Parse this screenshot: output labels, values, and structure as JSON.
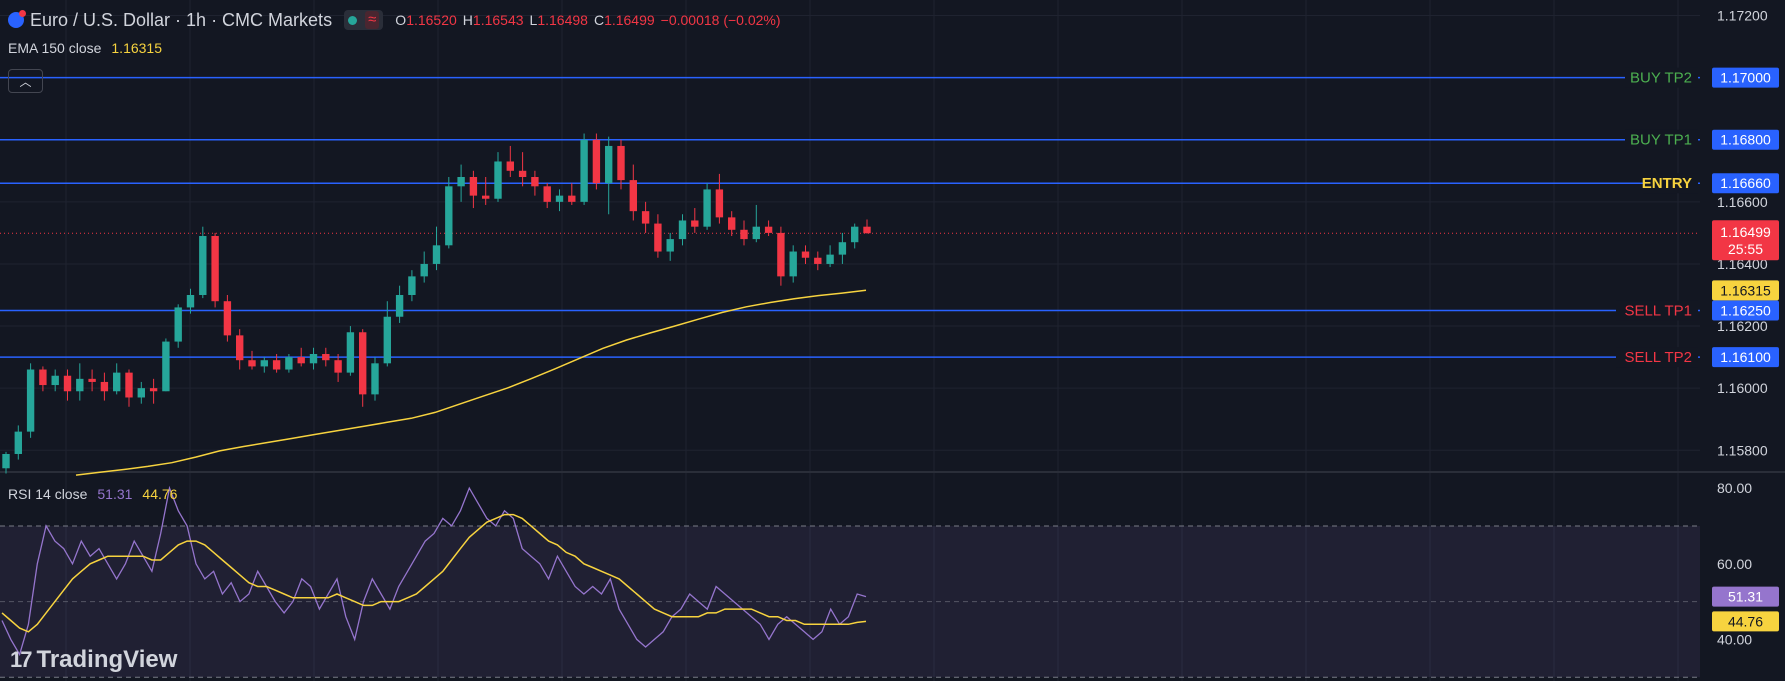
{
  "header": {
    "symbol_title": "Euro / U.S. Dollar · 1h · CMC Markets",
    "ohlc": [
      {
        "key": "O",
        "value": "1.16520"
      },
      {
        "key": "H",
        "value": "1.16543"
      },
      {
        "key": "L",
        "value": "1.16498"
      },
      {
        "key": "C",
        "value": "1.16499"
      }
    ],
    "change": "−0.00018 (−0.02%)"
  },
  "ema_legend": {
    "label": "EMA 150 close",
    "value": "1.16315"
  },
  "rsi_legend": {
    "label": "RSI 14 close",
    "rsi_value": "51.31",
    "ma_value": "44.76"
  },
  "logo": {
    "text": "TradingView"
  },
  "colors": {
    "background": "#131722",
    "up": "#26a69a",
    "down": "#f23645",
    "level_line": "#2962ff",
    "ema": "#f7d33f",
    "rsi": "#9575cd",
    "buy_label": "#4caf50",
    "sell_label": "#f23645",
    "entry_label": "#f7d33f"
  },
  "chart_data": [
    {
      "type": "candlestick",
      "title": "Euro / U.S. Dollar · 1h · CMC Markets",
      "y_axis": {
        "ticks": [
          "1.17200",
          "1.16600",
          "1.16400",
          "1.16200",
          "1.16000",
          "1.15800"
        ],
        "ylim": [
          1.1573,
          1.1725
        ]
      },
      "series": [
        {
          "name": "EMA 150 close",
          "values": [
            1.1572,
            1.15729,
            1.15738,
            1.15748,
            1.1576,
            1.15778,
            1.15798,
            1.15812,
            1.15825,
            1.15838,
            1.15851,
            1.15864,
            1.15877,
            1.1589,
            1.15903,
            1.15922,
            1.15948,
            1.15974,
            1.16,
            1.1603,
            1.16062,
            1.16095,
            1.16128,
            1.16155,
            1.16178,
            1.162,
            1.16222,
            1.16244,
            1.16262,
            1.16276,
            1.16288,
            1.16298,
            1.16306,
            1.16315
          ]
        }
      ],
      "candles": [
        {
          "o": 1.15742,
          "h": 1.15795,
          "l": 1.15725,
          "c": 1.15788
        },
        {
          "o": 1.15788,
          "h": 1.1588,
          "l": 1.1577,
          "c": 1.1586
        },
        {
          "o": 1.1586,
          "h": 1.1608,
          "l": 1.1584,
          "c": 1.1606
        },
        {
          "o": 1.1606,
          "h": 1.1607,
          "l": 1.1599,
          "c": 1.1601
        },
        {
          "o": 1.1601,
          "h": 1.1606,
          "l": 1.1599,
          "c": 1.1604
        },
        {
          "o": 1.1604,
          "h": 1.1606,
          "l": 1.1596,
          "c": 1.1599
        },
        {
          "o": 1.1599,
          "h": 1.1608,
          "l": 1.1596,
          "c": 1.1603
        },
        {
          "o": 1.1603,
          "h": 1.1606,
          "l": 1.1599,
          "c": 1.1602
        },
        {
          "o": 1.1602,
          "h": 1.1605,
          "l": 1.1596,
          "c": 1.1599
        },
        {
          "o": 1.1599,
          "h": 1.1608,
          "l": 1.1598,
          "c": 1.1605
        },
        {
          "o": 1.1605,
          "h": 1.1606,
          "l": 1.1594,
          "c": 1.1597
        },
        {
          "o": 1.1597,
          "h": 1.1602,
          "l": 1.1595,
          "c": 1.16
        },
        {
          "o": 1.16,
          "h": 1.1603,
          "l": 1.1595,
          "c": 1.1599
        },
        {
          "o": 1.1599,
          "h": 1.1616,
          "l": 1.1599,
          "c": 1.1615
        },
        {
          "o": 1.1615,
          "h": 1.1627,
          "l": 1.1613,
          "c": 1.1626
        },
        {
          "o": 1.1626,
          "h": 1.1632,
          "l": 1.1624,
          "c": 1.163
        },
        {
          "o": 1.163,
          "h": 1.1652,
          "l": 1.1629,
          "c": 1.1649
        },
        {
          "o": 1.1649,
          "h": 1.165,
          "l": 1.1626,
          "c": 1.1628
        },
        {
          "o": 1.1628,
          "h": 1.163,
          "l": 1.1615,
          "c": 1.1617
        },
        {
          "o": 1.1617,
          "h": 1.1619,
          "l": 1.1606,
          "c": 1.1609
        },
        {
          "o": 1.1609,
          "h": 1.1612,
          "l": 1.1606,
          "c": 1.1607
        },
        {
          "o": 1.1607,
          "h": 1.161,
          "l": 1.1605,
          "c": 1.1609
        },
        {
          "o": 1.1609,
          "h": 1.1611,
          "l": 1.1605,
          "c": 1.1606
        },
        {
          "o": 1.1606,
          "h": 1.1611,
          "l": 1.1605,
          "c": 1.161
        },
        {
          "o": 1.161,
          "h": 1.1613,
          "l": 1.1607,
          "c": 1.1608
        },
        {
          "o": 1.1608,
          "h": 1.1613,
          "l": 1.1606,
          "c": 1.1611
        },
        {
          "o": 1.1611,
          "h": 1.1613,
          "l": 1.1607,
          "c": 1.1609
        },
        {
          "o": 1.1609,
          "h": 1.1611,
          "l": 1.1602,
          "c": 1.1605
        },
        {
          "o": 1.1605,
          "h": 1.162,
          "l": 1.1604,
          "c": 1.1618
        },
        {
          "o": 1.1618,
          "h": 1.1619,
          "l": 1.1594,
          "c": 1.1598
        },
        {
          "o": 1.1598,
          "h": 1.161,
          "l": 1.1596,
          "c": 1.1608
        },
        {
          "o": 1.1608,
          "h": 1.1628,
          "l": 1.1607,
          "c": 1.1623
        },
        {
          "o": 1.1623,
          "h": 1.1633,
          "l": 1.1621,
          "c": 1.163
        },
        {
          "o": 1.163,
          "h": 1.1638,
          "l": 1.1628,
          "c": 1.1636
        },
        {
          "o": 1.1636,
          "h": 1.1644,
          "l": 1.1634,
          "c": 1.164
        },
        {
          "o": 1.164,
          "h": 1.1652,
          "l": 1.1638,
          "c": 1.1646
        },
        {
          "o": 1.1646,
          "h": 1.1668,
          "l": 1.1645,
          "c": 1.1665
        },
        {
          "o": 1.1665,
          "h": 1.1672,
          "l": 1.166,
          "c": 1.1668
        },
        {
          "o": 1.1668,
          "h": 1.167,
          "l": 1.1658,
          "c": 1.1662
        },
        {
          "o": 1.1662,
          "h": 1.1668,
          "l": 1.1659,
          "c": 1.1661
        },
        {
          "o": 1.1661,
          "h": 1.1676,
          "l": 1.166,
          "c": 1.1673
        },
        {
          "o": 1.1673,
          "h": 1.1678,
          "l": 1.1668,
          "c": 1.167
        },
        {
          "o": 1.167,
          "h": 1.1676,
          "l": 1.1665,
          "c": 1.1668
        },
        {
          "o": 1.1668,
          "h": 1.167,
          "l": 1.1662,
          "c": 1.1665
        },
        {
          "o": 1.1665,
          "h": 1.1666,
          "l": 1.1658,
          "c": 1.166
        },
        {
          "o": 1.166,
          "h": 1.1664,
          "l": 1.1657,
          "c": 1.1662
        },
        {
          "o": 1.1662,
          "h": 1.1666,
          "l": 1.1659,
          "c": 1.166
        },
        {
          "o": 1.166,
          "h": 1.1682,
          "l": 1.1659,
          "c": 1.168
        },
        {
          "o": 1.168,
          "h": 1.1682,
          "l": 1.1664,
          "c": 1.1666
        },
        {
          "o": 1.1666,
          "h": 1.1681,
          "l": 1.1656,
          "c": 1.1678
        },
        {
          "o": 1.1678,
          "h": 1.168,
          "l": 1.1664,
          "c": 1.1667
        },
        {
          "o": 1.1667,
          "h": 1.1672,
          "l": 1.1654,
          "c": 1.1657
        },
        {
          "o": 1.1657,
          "h": 1.166,
          "l": 1.165,
          "c": 1.1653
        },
        {
          "o": 1.1653,
          "h": 1.1656,
          "l": 1.1642,
          "c": 1.1644
        },
        {
          "o": 1.1644,
          "h": 1.165,
          "l": 1.1641,
          "c": 1.1648
        },
        {
          "o": 1.1648,
          "h": 1.1656,
          "l": 1.1646,
          "c": 1.1654
        },
        {
          "o": 1.1654,
          "h": 1.1658,
          "l": 1.165,
          "c": 1.1652
        },
        {
          "o": 1.1652,
          "h": 1.1666,
          "l": 1.1651,
          "c": 1.1664
        },
        {
          "o": 1.1664,
          "h": 1.1669,
          "l": 1.1653,
          "c": 1.1655
        },
        {
          "o": 1.1655,
          "h": 1.1657,
          "l": 1.1649,
          "c": 1.1651
        },
        {
          "o": 1.1651,
          "h": 1.1654,
          "l": 1.1646,
          "c": 1.1648
        },
        {
          "o": 1.1648,
          "h": 1.1659,
          "l": 1.1647,
          "c": 1.1652
        },
        {
          "o": 1.1652,
          "h": 1.1654,
          "l": 1.1649,
          "c": 1.165
        },
        {
          "o": 1.165,
          "h": 1.1652,
          "l": 1.1633,
          "c": 1.1636
        },
        {
          "o": 1.1636,
          "h": 1.1646,
          "l": 1.1634,
          "c": 1.1644
        },
        {
          "o": 1.1644,
          "h": 1.1646,
          "l": 1.164,
          "c": 1.1642
        },
        {
          "o": 1.1642,
          "h": 1.1644,
          "l": 1.1638,
          "c": 1.164
        },
        {
          "o": 1.164,
          "h": 1.1646,
          "l": 1.1639,
          "c": 1.1643
        },
        {
          "o": 1.1643,
          "h": 1.165,
          "l": 1.164,
          "c": 1.1647
        },
        {
          "o": 1.1647,
          "h": 1.1653,
          "l": 1.1645,
          "c": 1.1652
        },
        {
          "o": 1.1652,
          "h": 1.16543,
          "l": 1.16498,
          "c": 1.16499
        }
      ],
      "levels": [
        {
          "label": "BUY TP2",
          "price": "1.17000",
          "value": 1.17
        },
        {
          "label": "BUY TP1",
          "price": "1.16800",
          "value": 1.168
        },
        {
          "label": "ENTRY",
          "price": "1.16660",
          "value": 1.1666
        },
        {
          "label": "SELL TP1",
          "price": "1.16250",
          "value": 1.1625
        },
        {
          "label": "SELL TP2",
          "price": "1.16100",
          "value": 1.161
        }
      ],
      "current_price": {
        "value": 1.16499,
        "label": "1.16499",
        "countdown": "25:55"
      },
      "ema_tag": {
        "value": 1.16315,
        "label": "1.16315"
      }
    },
    {
      "type": "line",
      "title": "RSI 14 close",
      "y_axis": {
        "ticks": [
          "80.00",
          "60.00",
          "40.00"
        ],
        "ylim": [
          29,
          84
        ]
      },
      "bands": {
        "upper": 70,
        "middle": 50,
        "lower": 30
      },
      "series": [
        {
          "name": "RSI 14 close",
          "values": [
            45,
            40,
            36,
            44,
            60,
            70,
            66,
            64,
            60,
            66,
            62,
            64,
            60,
            56,
            60,
            66,
            62,
            58,
            68,
            80,
            74,
            70,
            60,
            56,
            58,
            52,
            55,
            50,
            52,
            58,
            54,
            50,
            47,
            50,
            56,
            54,
            48,
            52,
            56,
            46,
            40,
            50,
            56,
            52,
            48,
            54,
            58,
            62,
            66,
            68,
            72,
            70,
            74,
            80,
            76,
            72,
            70,
            74,
            72,
            64,
            62,
            60,
            56,
            62,
            58,
            54,
            52,
            54,
            52,
            56,
            48,
            44,
            40,
            38,
            40,
            42,
            46,
            48,
            52,
            50,
            48,
            54,
            52,
            50,
            48,
            46,
            44,
            40,
            44,
            46,
            44,
            42,
            40,
            42,
            48,
            44,
            46,
            52,
            51.31
          ]
        },
        {
          "name": "RSI MA",
          "values": [
            47,
            45,
            43,
            42,
            44,
            47,
            50,
            53,
            56,
            58,
            60,
            61,
            62,
            62,
            62,
            62,
            62,
            61,
            61,
            63,
            65,
            66,
            66,
            65,
            63,
            61,
            59,
            57,
            55,
            54,
            54,
            53,
            52,
            51,
            51,
            51,
            51,
            51,
            52,
            51,
            50,
            49,
            49,
            50,
            50,
            50,
            51,
            52,
            54,
            56,
            58,
            61,
            64,
            67,
            69,
            71,
            72,
            73,
            73,
            72,
            70,
            68,
            66,
            65,
            63,
            62,
            60,
            59,
            58,
            57,
            56,
            54,
            52,
            50,
            48,
            47,
            46,
            46,
            46,
            46,
            47,
            47,
            48,
            48,
            48,
            48,
            47,
            46,
            46,
            45,
            45,
            44,
            44,
            44,
            44,
            44,
            44,
            44.5,
            44.76
          ]
        }
      ]
    }
  ]
}
